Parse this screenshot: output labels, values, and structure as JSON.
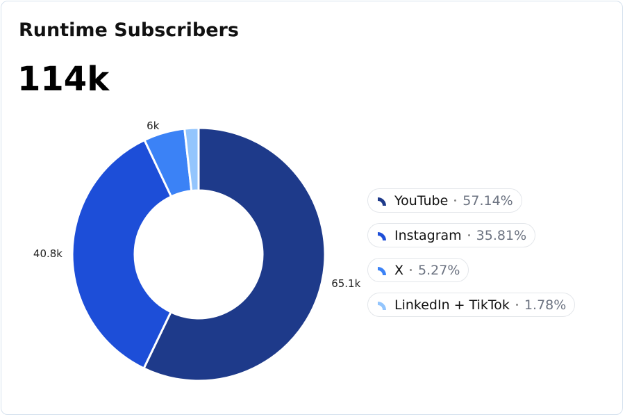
{
  "chart_data": {
    "type": "donut",
    "title": "Runtime Subscribers",
    "total": "114k",
    "categories": [
      "YouTube",
      "Instagram",
      "X",
      "LinkedIn + TikTok"
    ],
    "values": [
      65.1,
      40.8,
      6,
      2.03
    ],
    "value_labels": [
      "65.1k",
      "40.8k",
      "6k",
      null
    ],
    "percent_labels": [
      "57.14%",
      "35.81%",
      "5.27%",
      "1.78%"
    ],
    "colors": [
      "#1e3a8a",
      "#1d4ed8",
      "#3b82f6",
      "#93c5fd"
    ]
  }
}
